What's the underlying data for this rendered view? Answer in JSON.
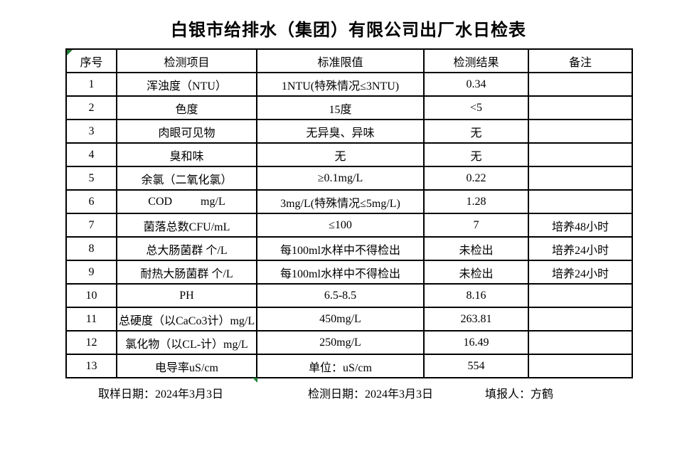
{
  "title": "白银市给排水（集团）有限公司出厂水日检表",
  "table": {
    "headers": [
      "序号",
      "检测项目",
      "标准限值",
      "检测结果",
      "备注"
    ],
    "rows": [
      {
        "seq": "1",
        "item": "浑浊度（NTU）",
        "limit": "1NTU(特殊情况≤3NTU)",
        "result": "0.34",
        "remark": ""
      },
      {
        "seq": "2",
        "item": "色度",
        "limit": "15度",
        "result": "<5",
        "remark": ""
      },
      {
        "seq": "3",
        "item": "肉眼可见物",
        "limit": "无异臭、异味",
        "result": "无",
        "remark": ""
      },
      {
        "seq": "4",
        "item": "臭和味",
        "limit": "无",
        "result": "无",
        "remark": ""
      },
      {
        "seq": "5",
        "item": "余氯（二氧化氯）",
        "limit": "≥0.1mg/L",
        "result": "0.22",
        "remark": ""
      },
      {
        "seq": "6",
        "item": "COD          mg/L",
        "limit": "3mg/L(特殊情况≤5mg/L)",
        "result": "1.28",
        "remark": ""
      },
      {
        "seq": "7",
        "item": "菌落总数CFU/mL",
        "limit": "≤100",
        "result": "7",
        "remark": "培养48小时"
      },
      {
        "seq": "8",
        "item": "总大肠菌群 个/L",
        "limit": "每100ml水样中不得检出",
        "result": "未检出",
        "remark": "培养24小时"
      },
      {
        "seq": "9",
        "item": "耐热大肠菌群 个/L",
        "limit": "每100ml水样中不得检出",
        "result": "未检出",
        "remark": "培养24小时"
      },
      {
        "seq": "10",
        "item": "PH",
        "limit": "6.5-8.5",
        "result": "8.16",
        "remark": ""
      },
      {
        "seq": "11",
        "item": "总硬度（以CaCo3计）mg/L",
        "limit": "450mg/L",
        "result": "263.81",
        "remark": ""
      },
      {
        "seq": "12",
        "item": "氯化物（以CL-计）mg/L",
        "limit": "250mg/L",
        "result": "16.49",
        "remark": ""
      },
      {
        "seq": "13",
        "item": "电导率uS/cm",
        "limit": "单位：uS/cm",
        "result": "554",
        "remark": ""
      }
    ]
  },
  "footer": {
    "sampling_date": "取样日期：2024年3月3日",
    "testing_date": "检测日期：2024年3月3日",
    "reporter": "填报人：方鹤"
  },
  "colors": {
    "background": "#ffffff",
    "text": "#000000",
    "border": "#000000",
    "excel_marker_green": "#1e7e34"
  },
  "icons": {
    "excel_marker_top_left": "cell-flag-triangle",
    "excel_marker_bottom": "cell-flag-triangle"
  }
}
